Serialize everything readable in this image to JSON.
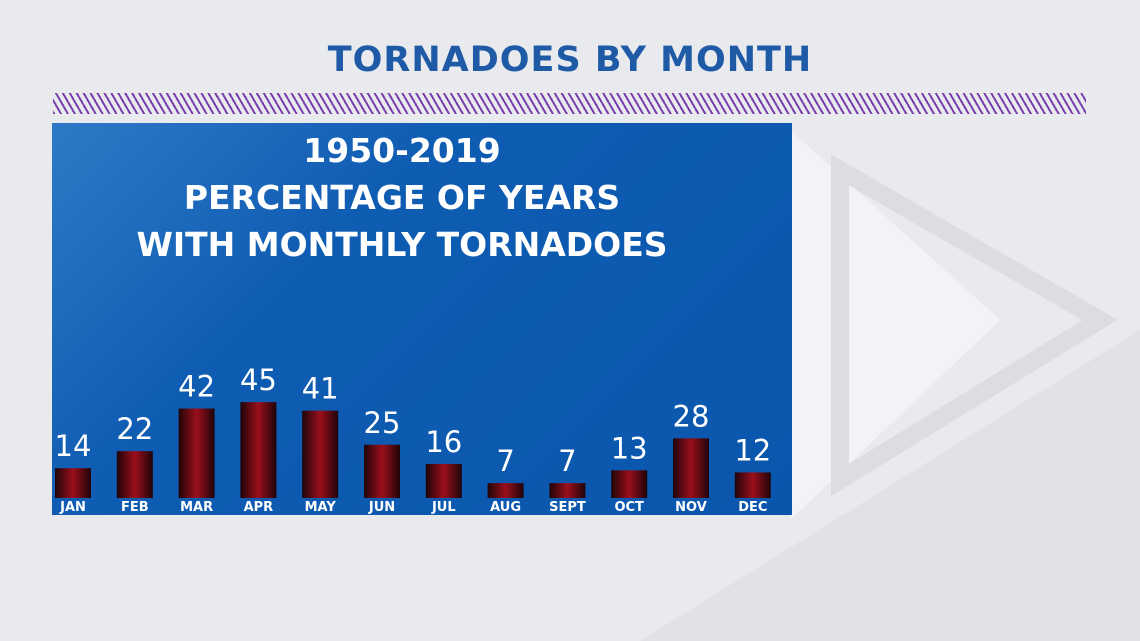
{
  "page": {
    "title": "TORNADOES BY MONTH"
  },
  "chart_data": {
    "type": "bar",
    "title_lines": [
      "1950-2019",
      "PERCENTAGE OF YEARS",
      "WITH MONTHLY TORNADOES"
    ],
    "categories": [
      "JAN",
      "FEB",
      "MAR",
      "APR",
      "MAY",
      "JUN",
      "JUL",
      "AUG",
      "SEPT",
      "OCT",
      "NOV",
      "DEC"
    ],
    "values": [
      14,
      22,
      42,
      45,
      41,
      25,
      16,
      7,
      7,
      13,
      28,
      12
    ],
    "data_labels": [
      "14",
      "22",
      "42",
      "45",
      "41",
      "25",
      "16",
      "7",
      "7",
      "13",
      "28",
      "12"
    ],
    "xlabel": "",
    "ylabel": "",
    "ylim": [
      0,
      45
    ],
    "grid": false,
    "legend": "none",
    "colors": {
      "panel": "#0b57ad",
      "bar_center": "#9b0f1c",
      "bar_edge": "#1e0408",
      "text": "#ffffff",
      "title": "#1f5aa6",
      "hatch": "#7a3fae"
    }
  }
}
